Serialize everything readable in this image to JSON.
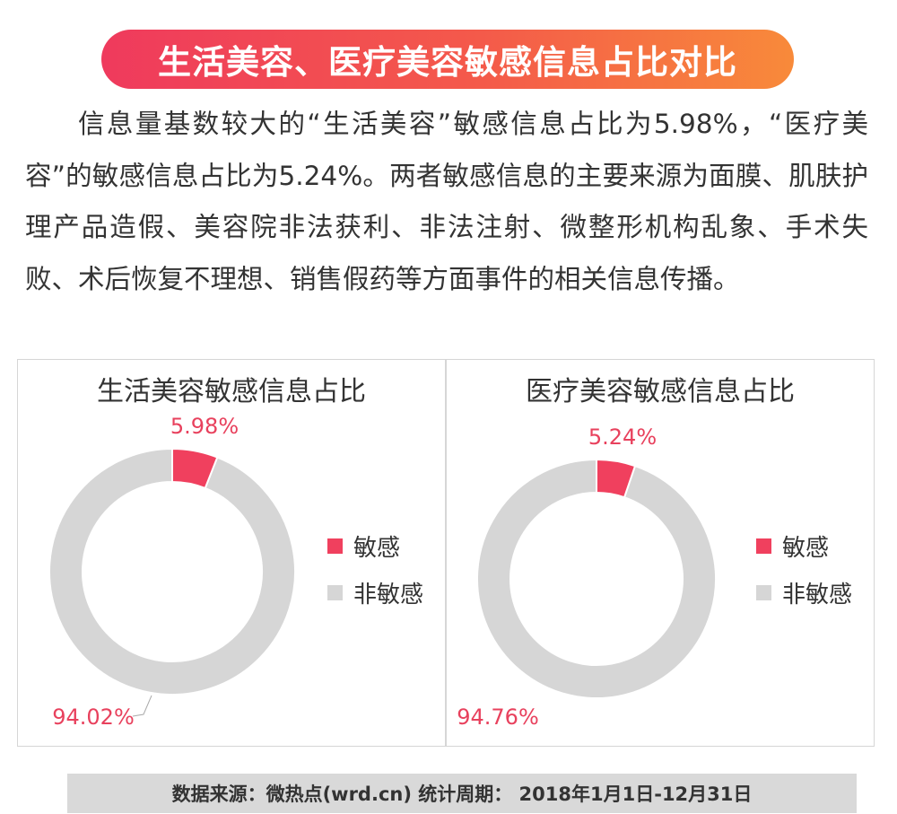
{
  "header": {
    "title": "生活美容、医疗美容敏感信息占比对比"
  },
  "description": "信息量基数较大的“生活美容”敏感信息占比为5.98%，“医疗美容”的敏感信息占比为5.24%。两者敏感信息的主要来源为面膜、肌肤护理产品造假、美容院非法获利、非法注射、微整形机构乱象、手术失败、术后恢复不理想、销售假药等方面事件的相关信息传播。",
  "colors": {
    "sensitive": "#f0405e",
    "non_sensitive": "#d6d6d6",
    "label_red": "#e8415d"
  },
  "chart_data": [
    {
      "type": "pie",
      "variant": "donut",
      "title": "生活美容敏感信息占比",
      "categories": [
        "敏感",
        "非敏感"
      ],
      "values": [
        5.98,
        94.02
      ],
      "data_labels": [
        "5.98%",
        "94.02%"
      ],
      "legend": {
        "position": "right",
        "entries": [
          "敏感",
          "非敏感"
        ]
      }
    },
    {
      "type": "pie",
      "variant": "donut",
      "title": "医疗美容敏感信息占比",
      "categories": [
        "敏感",
        "非敏感"
      ],
      "values": [
        5.24,
        94.76
      ],
      "data_labels": [
        "5.24%",
        "94.76%"
      ],
      "legend": {
        "position": "right",
        "entries": [
          "敏感",
          "非敏感"
        ]
      }
    }
  ],
  "footer": {
    "source": "数据来源：微热点(wrd.cn)  统计周期： 2018年1月1日-12月31日"
  }
}
